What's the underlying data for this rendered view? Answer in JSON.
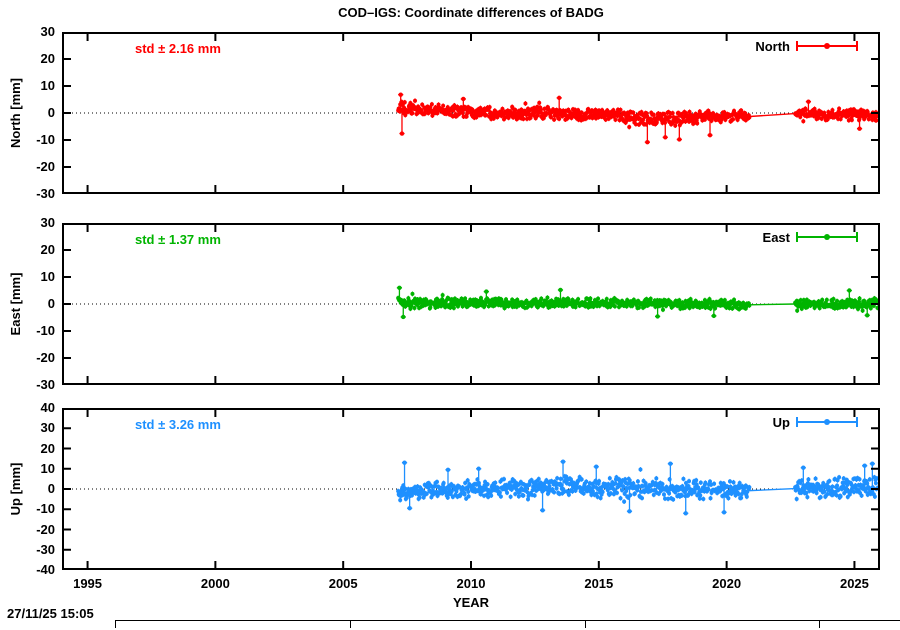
{
  "timestamp": "27/11/25 15:05",
  "chart_data": {
    "type": "scatter",
    "title": "COD–IGS: Coordinate differences of BADG",
    "xlabel": "YEAR",
    "xlim": [
      1994,
      2026
    ],
    "xticks": [
      1995,
      2000,
      2005,
      2010,
      2015,
      2020,
      2025
    ],
    "grid": false,
    "legend_position": "top-right-inside",
    "zero_line": "dotted",
    "data_span": [
      2007.15,
      2025.9
    ],
    "gap": [
      2020.9,
      2022.68
    ],
    "panels": [
      {
        "id": "north",
        "ylabel": "North [mm]",
        "legend": "North",
        "std_label": "std ± 2.16 mm",
        "std_mm": 2.16,
        "color": "#ff0000",
        "ylim": [
          -30,
          30
        ],
        "yticks": [
          30,
          20,
          10,
          0,
          -10,
          -20,
          -30
        ],
        "band": [
          [
            2007.15,
            1.6,
            3.0
          ],
          [
            2007.6,
            1.4,
            2.6
          ],
          [
            2009.0,
            0.8,
            2.6
          ],
          [
            2011.0,
            0.2,
            2.6
          ],
          [
            2013.0,
            -0.2,
            2.8
          ],
          [
            2015.0,
            -0.8,
            2.8
          ],
          [
            2016.5,
            -1.6,
            3.0
          ],
          [
            2017.5,
            -2.2,
            3.2
          ],
          [
            2018.5,
            -1.8,
            3.0
          ],
          [
            2020.0,
            -1.2,
            2.6
          ],
          [
            2020.9,
            -1.3,
            2.2
          ],
          [
            2022.68,
            -0.2,
            2.4
          ],
          [
            2024.0,
            -0.6,
            2.4
          ],
          [
            2025.9,
            -1.0,
            2.4
          ]
        ],
        "outliers": [
          [
            2007.25,
            6.8
          ],
          [
            2007.3,
            -7.6
          ],
          [
            2009.7,
            5.2
          ],
          [
            2013.45,
            5.6
          ],
          [
            2016.9,
            -10.8
          ],
          [
            2017.6,
            -9.0
          ],
          [
            2018.15,
            -9.8
          ],
          [
            2019.35,
            -8.2
          ],
          [
            2023.2,
            4.2
          ],
          [
            2025.2,
            -5.8
          ]
        ]
      },
      {
        "id": "east",
        "ylabel": "East [mm]",
        "legend": "East",
        "std_label": "std ± 1.37 mm",
        "std_mm": 1.37,
        "color": "#00b400",
        "ylim": [
          -30,
          30
        ],
        "yticks": [
          30,
          20,
          10,
          0,
          -10,
          -20,
          -30
        ],
        "band": [
          [
            2007.15,
            0.6,
            2.8
          ],
          [
            2008.0,
            0.5,
            2.2
          ],
          [
            2010.0,
            0.4,
            2.0
          ],
          [
            2012.0,
            0.2,
            2.0
          ],
          [
            2014.0,
            0.5,
            1.9
          ],
          [
            2016.0,
            0.3,
            2.0
          ],
          [
            2018.0,
            0.2,
            2.0
          ],
          [
            2020.0,
            -0.1,
            1.9
          ],
          [
            2020.9,
            -0.3,
            1.8
          ],
          [
            2022.68,
            0.0,
            2.0
          ],
          [
            2024.0,
            0.1,
            2.2
          ],
          [
            2025.9,
            0.2,
            2.4
          ]
        ],
        "outliers": [
          [
            2007.2,
            6.0
          ],
          [
            2007.35,
            -4.8
          ],
          [
            2010.6,
            4.6
          ],
          [
            2013.5,
            5.2
          ],
          [
            2017.3,
            -4.6
          ],
          [
            2019.5,
            -4.4
          ],
          [
            2024.8,
            5.0
          ],
          [
            2025.5,
            -4.2
          ]
        ]
      },
      {
        "id": "up",
        "ylabel": "Up [mm]",
        "legend": "Up",
        "std_label": "std ± 3.26 mm",
        "std_mm": 3.26,
        "color": "#1e90ff",
        "ylim": [
          -40,
          40
        ],
        "yticks": [
          40,
          30,
          20,
          10,
          0,
          -10,
          -20,
          -30,
          -40
        ],
        "band": [
          [
            2007.15,
            -2.0,
            4.2
          ],
          [
            2008.0,
            -1.2,
            4.4
          ],
          [
            2010.0,
            0.0,
            5.0
          ],
          [
            2012.0,
            0.6,
            5.4
          ],
          [
            2013.5,
            1.4,
            5.8
          ],
          [
            2015.0,
            0.4,
            5.4
          ],
          [
            2017.0,
            0.6,
            5.8
          ],
          [
            2018.5,
            -0.2,
            5.8
          ],
          [
            2020.0,
            -0.6,
            5.2
          ],
          [
            2020.9,
            -0.8,
            4.6
          ],
          [
            2022.68,
            0.2,
            5.2
          ],
          [
            2024.0,
            0.6,
            5.4
          ],
          [
            2025.9,
            1.0,
            5.6
          ]
        ],
        "outliers": [
          [
            2007.4,
            13.0
          ],
          [
            2007.6,
            -9.5
          ],
          [
            2009.1,
            9.5
          ],
          [
            2010.3,
            10.0
          ],
          [
            2012.8,
            -10.5
          ],
          [
            2013.6,
            13.5
          ],
          [
            2014.9,
            11.0
          ],
          [
            2016.2,
            -11.0
          ],
          [
            2017.8,
            12.5
          ],
          [
            2018.4,
            -12.0
          ],
          [
            2019.9,
            -11.5
          ],
          [
            2023.0,
            10.5
          ],
          [
            2025.4,
            11.5
          ],
          [
            2025.7,
            12.5
          ]
        ]
      }
    ]
  }
}
